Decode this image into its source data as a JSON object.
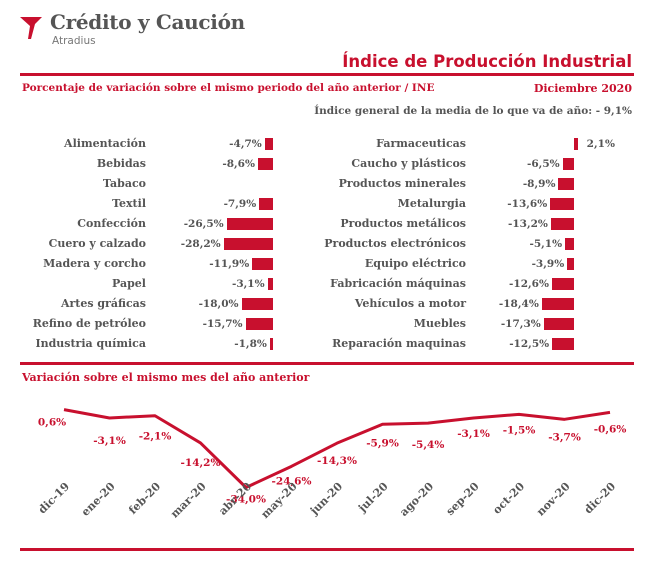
{
  "brand": {
    "name": "Crédito y Caución",
    "sub": "Atradius",
    "color": "#c8102e"
  },
  "header": {
    "title": "Índice de Producción Industrial",
    "subtitle": "Porcentaje de variación sobre el mismo periodo del año anterior / INE",
    "period": "Diciembre 2020",
    "note": "Índice general de la media de lo que va de año: - 9,1%"
  },
  "line_section": {
    "title": "Variación sobre el mismo mes del año anterior"
  },
  "chart_data": [
    {
      "type": "bar",
      "orientation": "horizontal",
      "categories": [
        "Alimentación",
        "Bebidas",
        "Tabaco",
        "Textil",
        "Confección",
        "Cuero y calzado",
        "Madera y corcho",
        "Papel",
        "Artes gráficas",
        "Refino de petróleo",
        "Industria química"
      ],
      "values": [
        -4.7,
        -8.6,
        null,
        -7.9,
        -26.5,
        -28.2,
        -11.9,
        -3.1,
        -18.0,
        -15.7,
        -1.8
      ],
      "value_labels": [
        "-4,7%",
        "-8,6%",
        "",
        "-7,9%",
        "-26,5%",
        "-28,2%",
        "-11,9%",
        "-3,1%",
        "-18,0%",
        "-15,7%",
        "-1,8%"
      ],
      "color": "#c8102e"
    },
    {
      "type": "bar",
      "orientation": "horizontal",
      "categories": [
        "Farmaceuticas",
        "Caucho y plásticos",
        "Productos minerales",
        "Metalurgia",
        "Productos metálicos",
        "Productos electrónicos",
        "Equipo eléctrico",
        "Fabricación máquinas",
        "Vehículos a motor",
        "Muebles",
        "Reparación maquinas"
      ],
      "values": [
        2.1,
        -6.5,
        -8.9,
        -13.6,
        -13.2,
        -5.1,
        -3.9,
        -12.6,
        -18.4,
        -17.3,
        -12.5
      ],
      "value_labels": [
        "2,1%",
        "-6,5%",
        "-8,9%",
        "-13,6%",
        "-13,2%",
        "-5,1%",
        "-3,9%",
        "-12,6%",
        "-18,4%",
        "-17,3%",
        "-12,5%"
      ],
      "color": "#c8102e"
    },
    {
      "type": "line",
      "title": "Variación sobre el mismo mes del año anterior",
      "x": [
        "dic-19",
        "ene-20",
        "feb-20",
        "mar-20",
        "abr-20",
        "may-20",
        "jun-20",
        "jul-20",
        "ago-20",
        "sep-20",
        "oct-20",
        "nov-20",
        "dic-20"
      ],
      "values": [
        0.6,
        -3.1,
        -2.1,
        -14.2,
        -34.0,
        -24.6,
        -14.3,
        -5.9,
        -5.4,
        -3.1,
        -1.5,
        -3.7,
        -0.6
      ],
      "value_labels": [
        "0,6%",
        "-3,1%",
        "-2,1%",
        "-14,2%",
        "-34,0%",
        "-24,6%",
        "-14,3%",
        "-5,9%",
        "-5,4%",
        "-3,1%",
        "-1,5%",
        "-3,7%",
        "-0,6%"
      ],
      "color": "#c8102e",
      "grid": false
    }
  ]
}
